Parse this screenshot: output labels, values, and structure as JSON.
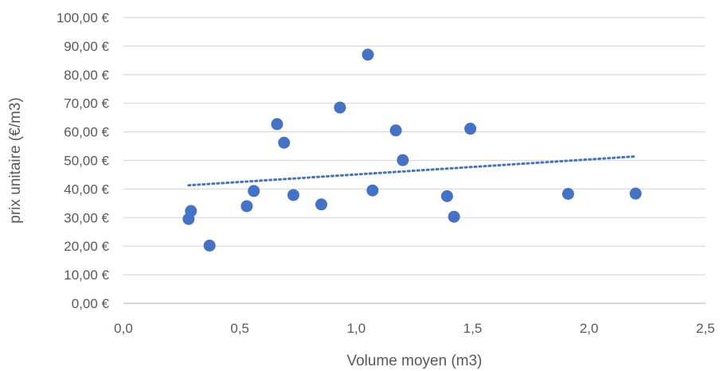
{
  "chart_data": {
    "type": "scatter",
    "title": "",
    "xlabel": "Volume moyen (m3)",
    "ylabel": "prix unitaire (€/m3)",
    "xlim": [
      0,
      2.5
    ],
    "ylim": [
      0,
      100
    ],
    "x_ticks": [
      "0,0",
      "0,5",
      "1,0",
      "1,5",
      "2,0",
      "2,5"
    ],
    "x_tick_values": [
      0,
      0.5,
      1.0,
      1.5,
      2.0,
      2.5
    ],
    "y_ticks": [
      "0,00 €",
      "10,00 €",
      "20,00 €",
      "30,00 €",
      "40,00 €",
      "50,00 €",
      "60,00 €",
      "70,00 €",
      "80,00 €",
      "90,00 €",
      "100,00 €"
    ],
    "y_tick_values": [
      0,
      10,
      20,
      30,
      40,
      50,
      60,
      70,
      80,
      90,
      100
    ],
    "grid": "horizontal",
    "legend": "none",
    "series": [
      {
        "marker_color": "#4472C4",
        "points": [
          {
            "x": 0.28,
            "y": 29.5
          },
          {
            "x": 0.29,
            "y": 32.3
          },
          {
            "x": 0.37,
            "y": 20.2
          },
          {
            "x": 0.53,
            "y": 34.0
          },
          {
            "x": 0.56,
            "y": 39.3
          },
          {
            "x": 0.66,
            "y": 62.7
          },
          {
            "x": 0.69,
            "y": 56.2
          },
          {
            "x": 0.73,
            "y": 37.9
          },
          {
            "x": 0.85,
            "y": 34.6
          },
          {
            "x": 0.93,
            "y": 68.5
          },
          {
            "x": 1.05,
            "y": 87.0
          },
          {
            "x": 1.07,
            "y": 39.5
          },
          {
            "x": 1.17,
            "y": 60.5
          },
          {
            "x": 1.2,
            "y": 50.1
          },
          {
            "x": 1.39,
            "y": 37.5
          },
          {
            "x": 1.42,
            "y": 30.3
          },
          {
            "x": 1.49,
            "y": 61.1
          },
          {
            "x": 1.91,
            "y": 38.3
          },
          {
            "x": 2.2,
            "y": 38.4
          }
        ]
      }
    ],
    "trendline": {
      "type": "linear",
      "style": "dotted",
      "color": "#4472C4",
      "x_start": 0.28,
      "y_start": 41.3,
      "x_end": 2.2,
      "y_end": 51.4
    }
  }
}
